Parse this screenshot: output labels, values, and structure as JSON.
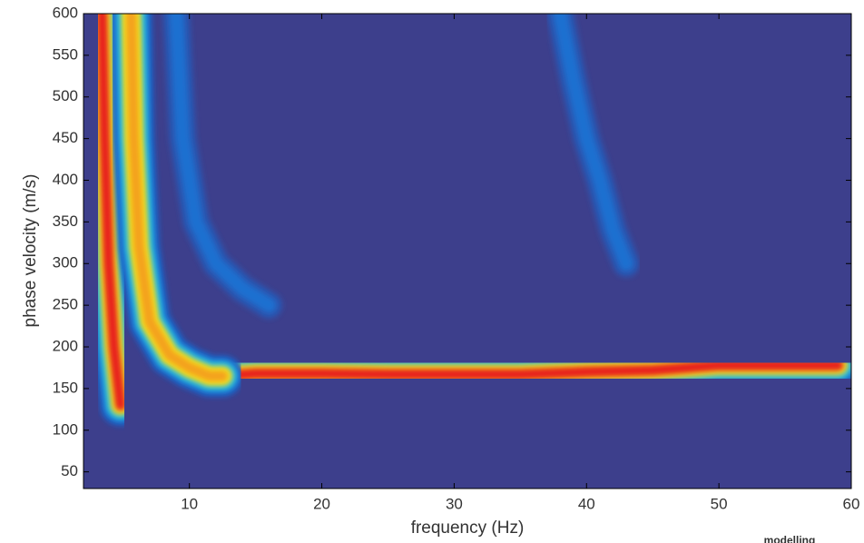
{
  "chart_data": {
    "type": "contour",
    "xlabel": "frequency (Hz)",
    "ylabel": "phase velocity (m/s)",
    "annotation": "modelling",
    "xlim": [
      2,
      60
    ],
    "ylim": [
      30,
      600
    ],
    "xticks": [
      10,
      20,
      30,
      40,
      50,
      60
    ],
    "yticks": [
      50,
      100,
      150,
      200,
      250,
      300,
      350,
      400,
      450,
      500,
      550,
      600
    ],
    "background": "#3d3f8c",
    "series": [
      {
        "color": "#e8241c",
        "x": [
          12.5,
          15,
          20,
          25,
          30,
          35,
          40,
          45,
          50,
          55,
          59
        ],
        "y": [
          165,
          168,
          168,
          167,
          167,
          167,
          170,
          172,
          178,
          178,
          178
        ]
      },
      {
        "color": "#e8241c",
        "x": [
          3.4,
          3.6,
          3.9,
          4.3,
          4.8
        ],
        "y": [
          600,
          450,
          300,
          200,
          130
        ]
      },
      {
        "color": "#f4a21c",
        "x": [
          5.6,
          5.8,
          6.2,
          7,
          8.5,
          10,
          11.5,
          12.5
        ],
        "y": [
          600,
          450,
          320,
          230,
          190,
          175,
          165,
          165
        ]
      },
      {
        "color": "#1e6fd0",
        "x": [
          9,
          9.5,
          10.5,
          12,
          14,
          16
        ],
        "y": [
          600,
          450,
          350,
          300,
          270,
          250
        ]
      },
      {
        "color": "#1e6fd0",
        "x": [
          38,
          39,
          40,
          41,
          42,
          43
        ],
        "y": [
          600,
          520,
          450,
          400,
          340,
          300
        ]
      }
    ]
  }
}
